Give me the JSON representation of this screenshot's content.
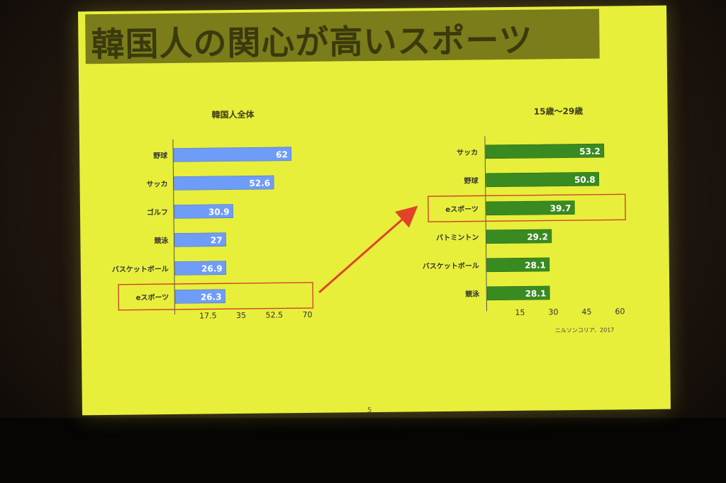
{
  "slide": {
    "title": "韓国人の関心が高いスポーツ",
    "source": "ニルソンコリア、2017",
    "page_number": "5"
  },
  "colors": {
    "background": "#e7ef3a",
    "left_bars": "#6f9cf6",
    "right_bars": "#3a8a22",
    "highlight": "#d2452c",
    "arrow": "#e0432a"
  },
  "chart_data": [
    {
      "type": "bar",
      "orientation": "horizontal",
      "title": "韓国人全体",
      "categories": [
        "野球",
        "サッカ",
        "ゴルフ",
        "競泳",
        "バスケットボール",
        "eスポーツ"
      ],
      "values": [
        62,
        52.6,
        30.9,
        27,
        26.9,
        26.3
      ],
      "value_labels": [
        "62",
        "52.6",
        "30.9",
        "27",
        "26.9",
        "26.3"
      ],
      "xlim": [
        0,
        70
      ],
      "xticks": [
        "17.5",
        "35",
        "52.5",
        "70"
      ],
      "xtick_values": [
        17.5,
        35,
        52.5,
        70
      ],
      "highlighted": "eスポーツ"
    },
    {
      "type": "bar",
      "orientation": "horizontal",
      "title": "15歳〜29歳",
      "categories": [
        "サッカ",
        "野球",
        "eスポーツ",
        "バトミントン",
        "バスケットボール",
        "競泳"
      ],
      "values": [
        53.2,
        50.8,
        39.7,
        29.2,
        28.1,
        28.1
      ],
      "value_labels": [
        "53.2",
        "50.8",
        "39.7",
        "29.2",
        "28.1",
        "28.1"
      ],
      "xlim": [
        0,
        60
      ],
      "xticks": [
        "15",
        "30",
        "45",
        "60"
      ],
      "xtick_values": [
        15,
        30,
        45,
        60
      ],
      "highlighted": "eスポーツ"
    }
  ]
}
